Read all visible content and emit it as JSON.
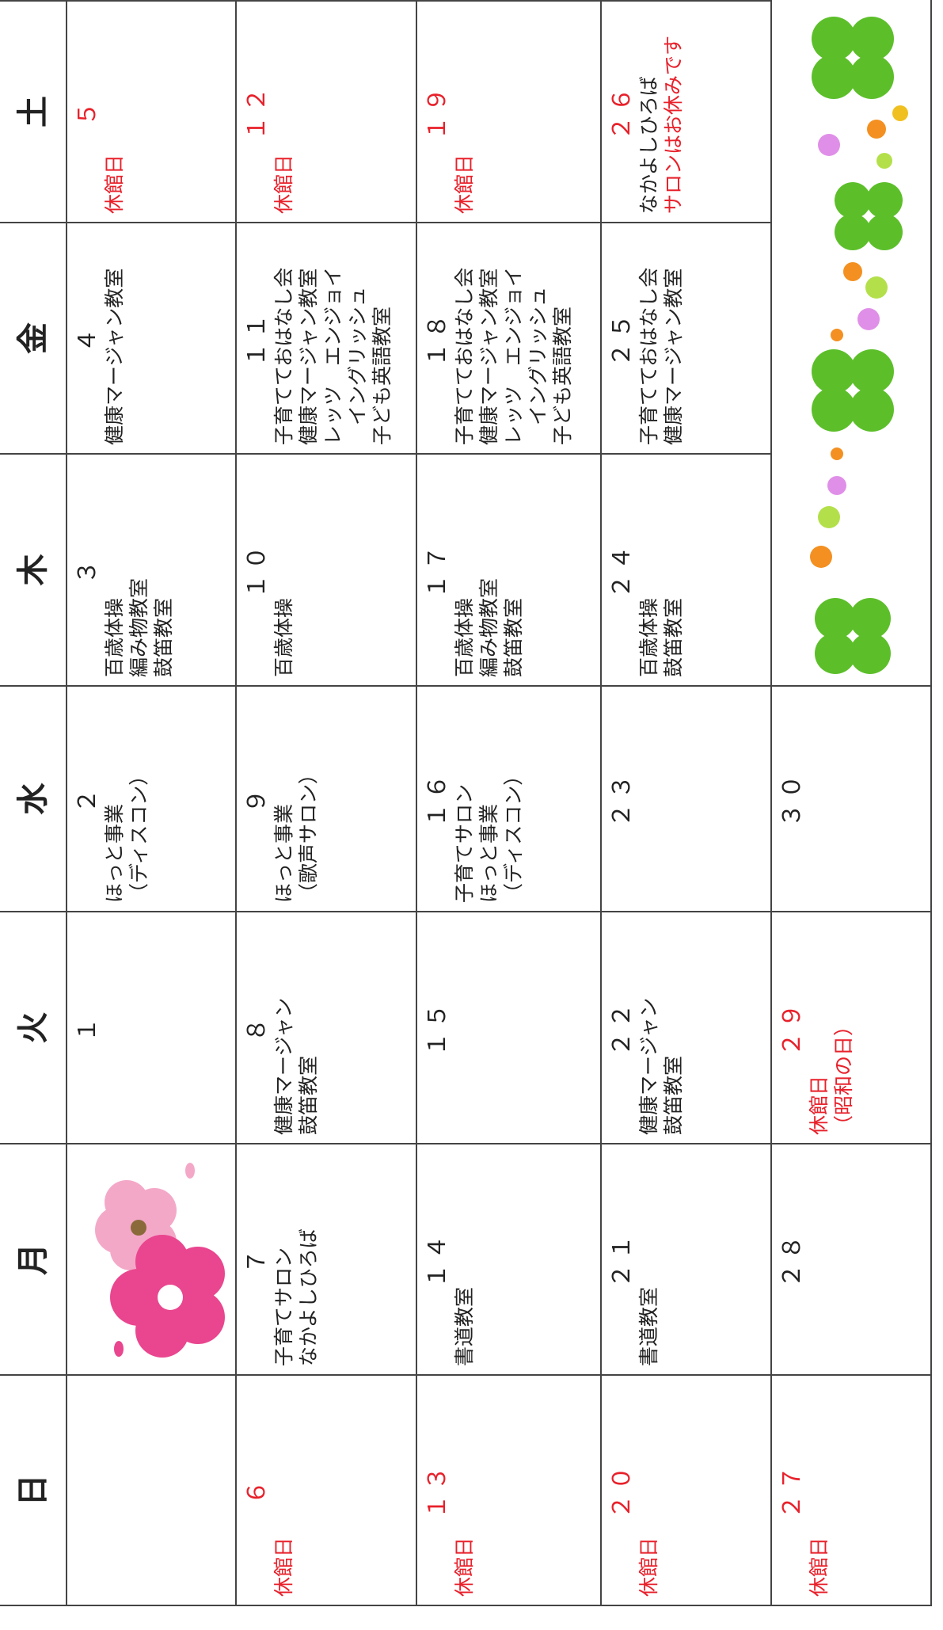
{
  "calendar": {
    "weekdays": [
      "日",
      "月",
      "火",
      "水",
      "木",
      "金",
      "土"
    ],
    "holiday_color": "#e8212b",
    "weeks": [
      [
        null,
        null,
        {
          "day": "１",
          "lines": []
        },
        {
          "day": "２",
          "lines": [
            "ほっと事業",
            "（ディスコン）"
          ]
        },
        {
          "day": "３",
          "lines": [
            "百歳体操",
            "編み物教室",
            "鼓笛教室"
          ]
        },
        {
          "day": "４",
          "lines": [
            "健康マージャン教室"
          ]
        },
        {
          "day": "５",
          "holiday": true,
          "lines": [
            "休館日"
          ]
        }
      ],
      [
        {
          "day": "６",
          "holiday": true,
          "lines": [
            "休館日"
          ]
        },
        {
          "day": "７",
          "lines": [
            "子育てサロン",
            "なかよしひろば"
          ]
        },
        {
          "day": "８",
          "lines": [
            "健康マージャン",
            "鼓笛教室"
          ]
        },
        {
          "day": "９",
          "lines": [
            "ほっと事業",
            "（歌声サロン）"
          ]
        },
        {
          "day": "１０",
          "lines": [
            "百歳体操"
          ]
        },
        {
          "day": "１１",
          "lines": [
            "子育てておはなし会",
            "健康マージャン教室",
            "レッツ　エンジョイ",
            "　イングリッシュ",
            "子ども英語教室"
          ]
        },
        {
          "day": "１２",
          "holiday": true,
          "lines": [
            "休館日"
          ]
        }
      ],
      [
        {
          "day": "１３",
          "holiday": true,
          "lines": [
            "休館日"
          ]
        },
        {
          "day": "１４",
          "lines": [
            "書道教室"
          ]
        },
        {
          "day": "１５",
          "lines": []
        },
        {
          "day": "１６",
          "lines": [
            "子育てサロン",
            "ほっと事業",
            "（ディスコン）"
          ]
        },
        {
          "day": "１７",
          "lines": [
            "百歳体操",
            "編み物教室",
            "鼓笛教室"
          ]
        },
        {
          "day": "１８",
          "lines": [
            "子育てておはなし会",
            "健康マージャン教室",
            "レッツ　エンジョイ",
            "　イングリッシュ",
            "子ども英語教室"
          ]
        },
        {
          "day": "１９",
          "holiday": true,
          "lines": [
            "休館日"
          ]
        }
      ],
      [
        {
          "day": "２０",
          "holiday": true,
          "lines": [
            "休館日"
          ]
        },
        {
          "day": "２１",
          "lines": [
            "書道教室"
          ]
        },
        {
          "day": "２２",
          "lines": [
            "健康マージャン",
            "鼓笛教室"
          ]
        },
        {
          "day": "２３",
          "lines": []
        },
        {
          "day": "２４",
          "lines": [
            "百歳体操",
            "鼓笛教室"
          ]
        },
        {
          "day": "２５",
          "lines": [
            "子育てておはなし会",
            "健康マージャン教室"
          ]
        },
        {
          "day": "２６",
          "holiday": true,
          "lines": [
            {
              "text": "なかよしひろば",
              "normal": true
            },
            "サロンはお休みです"
          ]
        }
      ],
      [
        {
          "day": "２７",
          "holiday": true,
          "lines": [
            "休館日"
          ]
        },
        {
          "day": "２８",
          "lines": []
        },
        {
          "day": "２９",
          "holiday": true,
          "lines": [
            "休館日",
            "（昭和の日）"
          ]
        },
        {
          "day": "３０",
          "lines": []
        },
        null,
        null,
        null
      ]
    ]
  }
}
